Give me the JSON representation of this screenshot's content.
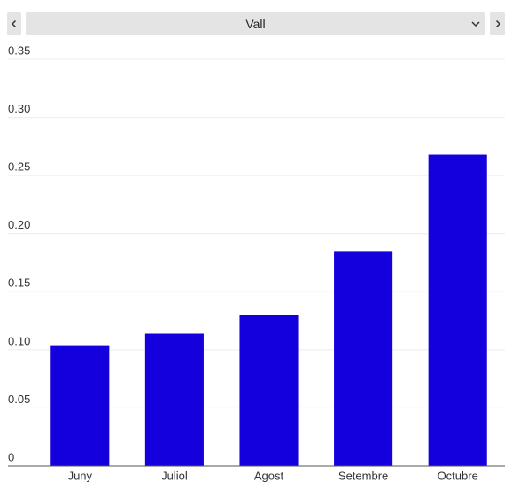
{
  "chart_data": {
    "type": "bar",
    "filter": "Vall",
    "categories": [
      "Juny",
      "Juliol",
      "Agost",
      "Setembre",
      "Octubre"
    ],
    "values": [
      0.104,
      0.114,
      0.13,
      0.185,
      0.268
    ],
    "color": "#1400dc",
    "ylim": [
      0,
      0.35
    ],
    "yticks": [
      0,
      0.05,
      {
        "value": 0.1,
        "label": "0.10"
      },
      0.15,
      {
        "value": 0.2,
        "label": "0.20"
      },
      0.25,
      {
        "value": 0.3,
        "label": "0.30"
      },
      0.35
    ],
    "grid": true
  }
}
